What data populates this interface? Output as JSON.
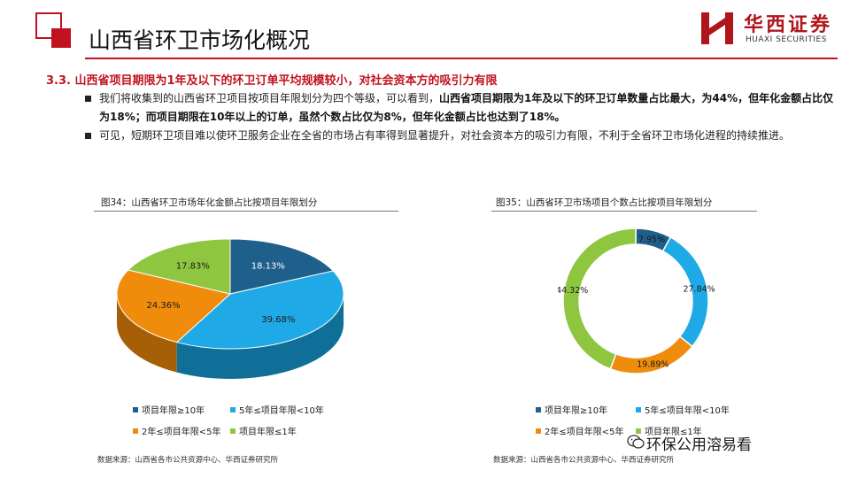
{
  "header": {
    "title": "山西省环卫市场化概况",
    "brand_cn": "华西证券",
    "brand_en": "HUAXI SECURITIES"
  },
  "section": {
    "heading": "3.3. 山西省项目期限为1年及以下的环卫订单平均规模较小，对社会资本方的吸引力有限",
    "bullet1_normal": "我们将收集到的山西省环卫项目按项目年限划分为四个等级，可以看到，",
    "bullet1_bold": "山西省项目期限为1年及以下的环卫订单数量占比最大，为44%，但年化金额占比仅为18%；而项目期限在10年以上的订单，虽然个数占比仅为8%，但年化金额占比也达到了18%。",
    "bullet2": "可见，短期环卫项目难以使环卫服务企业在全省的市场占有率得到显著提升，对社会资本方的吸引力有限，不利于全省环卫市场化进程的持续推进。"
  },
  "colors": {
    "accent": "#c1121f",
    "series": [
      "#1f5f8b",
      "#1fa9e6",
      "#f08c0c",
      "#8ec63f"
    ],
    "series_dark": [
      "#143f5e",
      "#0f6f99",
      "#a65f06",
      "#5f8a26"
    ]
  },
  "chart_data": [
    {
      "type": "pie",
      "title": "图34：山西省环卫市场年化金额占比按项目年限划分",
      "categories": [
        "项目年限≥10年",
        "5年≤项目年限<10年",
        "2年≤项目年限<5年",
        "项目年限≤1年"
      ],
      "values": [
        18.13,
        39.68,
        24.36,
        17.83
      ],
      "value_labels": [
        "18.13%",
        "39.68%",
        "24.36%",
        "17.83%"
      ],
      "style": "3d",
      "legend": "bottom",
      "source": "数据来源：山西省各市公共资源中心、华西证券研究所"
    },
    {
      "type": "pie",
      "title": "图35：山西省环卫市场项目个数占比按项目年限划分",
      "categories": [
        "项目年限≥10年",
        "5年≤项目年限<10年",
        "2年≤项目年限<5年",
        "项目年限≤1年"
      ],
      "values": [
        7.95,
        27.84,
        19.89,
        44.32
      ],
      "value_labels": [
        "7.95%",
        "27.84%",
        "19.89%",
        "44.32%"
      ],
      "style": "donut",
      "legend": "bottom",
      "source": "数据来源：山西省各市公共资源中心、华西证券研究所"
    }
  ],
  "watermark": "环保公用溶易看"
}
